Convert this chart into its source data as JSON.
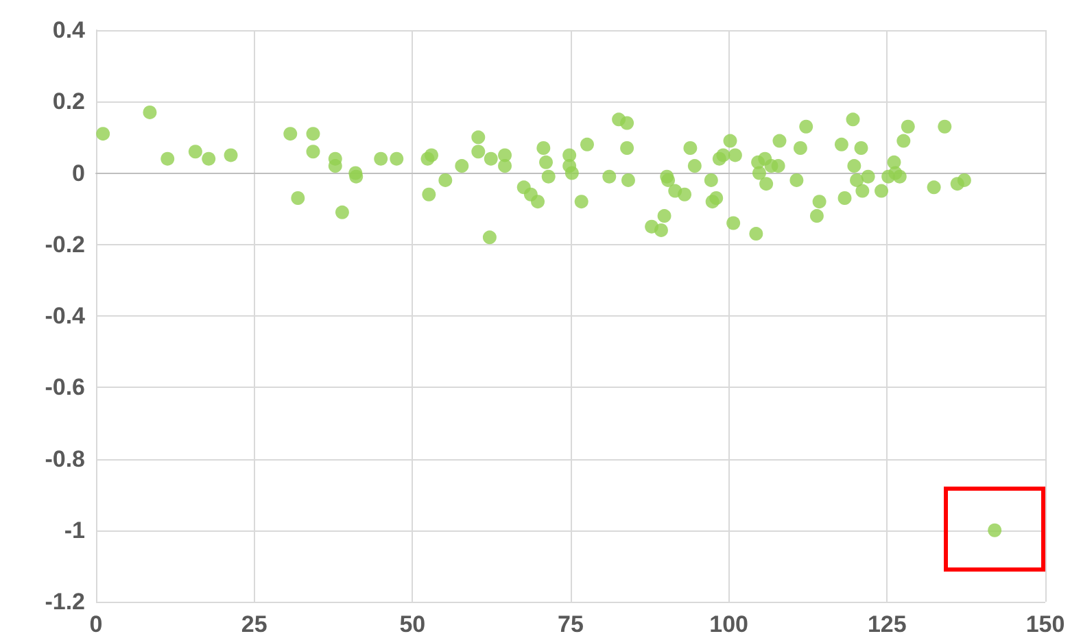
{
  "chart_data": {
    "type": "scatter",
    "marker": "circle",
    "grid": true,
    "xlim": [
      0,
      150
    ],
    "xticks": [
      0,
      25,
      50,
      75,
      100,
      125,
      150
    ],
    "ylim": [
      -1.2,
      0.4
    ],
    "yticks": [
      -1.2,
      -1,
      -0.8,
      -0.6,
      -0.4,
      -0.2,
      0,
      0.2,
      0.4
    ],
    "series": [
      {
        "color": "#92d050",
        "x": [
          1.1,
          8.5,
          11.3,
          15.7,
          17.8,
          21.3,
          30.7,
          31.9,
          34.3,
          34.3,
          37.8,
          37.8,
          38.9,
          41.1,
          41.0,
          45.0,
          47.5,
          52.4,
          53.0,
          52.6,
          55.2,
          57.8,
          60.4,
          60.4,
          62.2,
          62.4,
          64.6,
          64.6,
          67.6,
          68.7,
          69.8,
          70.7,
          71.1,
          71.5,
          74.8,
          74.8,
          75.2,
          76.7,
          77.6,
          81.1,
          82.6,
          83.9,
          83.9,
          84.1,
          87.8,
          89.3,
          89.8,
          90.2,
          90.4,
          91.5,
          93.0,
          93.9,
          94.6,
          97.2,
          97.4,
          98.0,
          98.5,
          99.1,
          100.2,
          100.7,
          101.0,
          104.3,
          104.6,
          104.8,
          105.7,
          105.9,
          106.7,
          107.8,
          108.0,
          110.7,
          111.3,
          112.2,
          113.9,
          114.3,
          117.8,
          118.3,
          119.6,
          120.9,
          119.8,
          120.2,
          121.1,
          122.0,
          124.1,
          125.2,
          126.1,
          126.3,
          127.0,
          127.6,
          128.3,
          132.4,
          134.1,
          136.1,
          137.2,
          142.0
        ],
        "values": [
          0.11,
          0.17,
          0.04,
          0.06,
          0.04,
          0.05,
          0.11,
          -0.07,
          0.11,
          0.06,
          0.04,
          0.02,
          -0.11,
          -0.01,
          0.0,
          0.04,
          0.04,
          0.04,
          0.05,
          -0.06,
          -0.02,
          0.02,
          0.1,
          0.06,
          -0.18,
          0.04,
          0.05,
          0.02,
          -0.04,
          -0.06,
          -0.08,
          0.07,
          0.03,
          -0.01,
          0.05,
          0.02,
          0.0,
          -0.08,
          0.08,
          -0.01,
          0.15,
          0.14,
          0.07,
          -0.02,
          -0.15,
          -0.16,
          -0.12,
          -0.01,
          -0.02,
          -0.05,
          -0.06,
          0.07,
          0.02,
          -0.02,
          -0.08,
          -0.07,
          0.04,
          0.05,
          0.09,
          -0.14,
          0.05,
          -0.17,
          0.03,
          0.0,
          0.04,
          -0.03,
          0.02,
          0.02,
          0.09,
          -0.02,
          0.07,
          0.13,
          -0.12,
          -0.08,
          0.08,
          -0.07,
          0.15,
          0.07,
          0.02,
          -0.02,
          -0.05,
          -0.01,
          -0.05,
          -0.01,
          0.03,
          0.0,
          -0.01,
          0.09,
          0.13,
          -0.04,
          0.13,
          -0.03,
          -0.02,
          -1.0
        ]
      }
    ]
  }
}
